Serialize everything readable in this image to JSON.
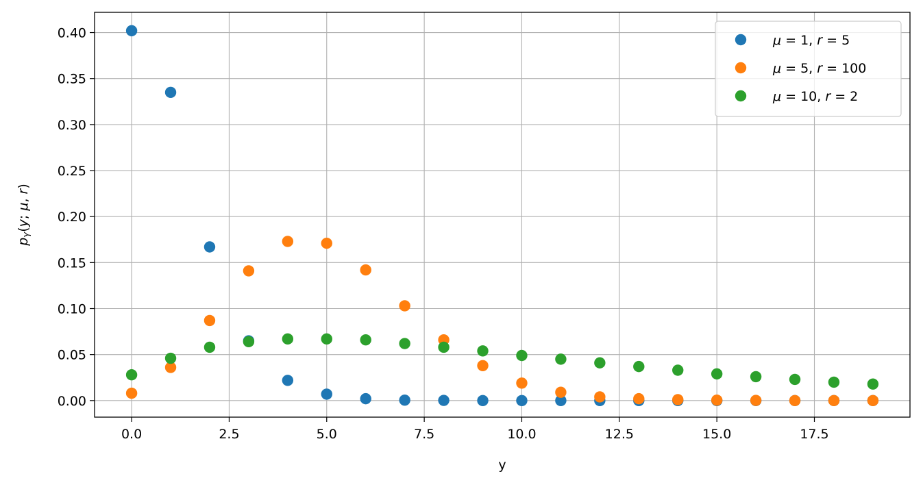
{
  "chart_data": {
    "type": "scatter",
    "xlabel": "y",
    "ylabel": "p_Y(y; μ, r)",
    "xlim": [
      -0.95,
      19.95
    ],
    "ylim": [
      -0.018,
      0.422
    ],
    "grid": true,
    "legend_position": "top-right",
    "x_ticks": [
      0.0,
      2.5,
      5.0,
      7.5,
      10.0,
      12.5,
      15.0,
      17.5
    ],
    "x_tick_labels": [
      "0.0",
      "2.5",
      "5.0",
      "7.5",
      "10.0",
      "12.5",
      "15.0",
      "17.5"
    ],
    "y_ticks": [
      0.0,
      0.05,
      0.1,
      0.15,
      0.2,
      0.25,
      0.3,
      0.35,
      0.4
    ],
    "y_tick_labels": [
      "0.00",
      "0.05",
      "0.10",
      "0.15",
      "0.20",
      "0.25",
      "0.30",
      "0.35",
      "0.40"
    ],
    "x": [
      0,
      1,
      2,
      3,
      4,
      5,
      6,
      7,
      8,
      9,
      10,
      11,
      12,
      13,
      14,
      15,
      16,
      17,
      18,
      19
    ],
    "series": [
      {
        "name": "μ = 1, r = 5",
        "mu": "1",
        "r": "5",
        "color": "#1f77b4",
        "values": [
          0.402,
          0.335,
          0.167,
          0.065,
          0.022,
          0.007,
          0.002,
          0.0005,
          0.0002,
          0.0,
          0.0,
          0.0,
          0.0,
          0.0,
          0.0,
          0.0,
          0.0,
          0.0,
          0.0,
          0.0
        ]
      },
      {
        "name": "μ = 5, r = 100",
        "mu": "5",
        "r": "100",
        "color": "#ff7f0e",
        "values": [
          0.008,
          0.036,
          0.087,
          0.141,
          0.173,
          0.171,
          0.142,
          0.103,
          0.066,
          0.038,
          0.019,
          0.009,
          0.004,
          0.002,
          0.001,
          0.0005,
          0.0002,
          0.0,
          0.0,
          0.0
        ]
      },
      {
        "name": "μ = 10, r = 2",
        "mu": "10",
        "r": "2",
        "color": "#2ca02c",
        "values": [
          0.028,
          0.046,
          0.058,
          0.064,
          0.067,
          0.067,
          0.066,
          0.062,
          0.058,
          0.054,
          0.049,
          0.045,
          0.041,
          0.037,
          0.033,
          0.029,
          0.026,
          0.023,
          0.02,
          0.018
        ]
      }
    ]
  }
}
